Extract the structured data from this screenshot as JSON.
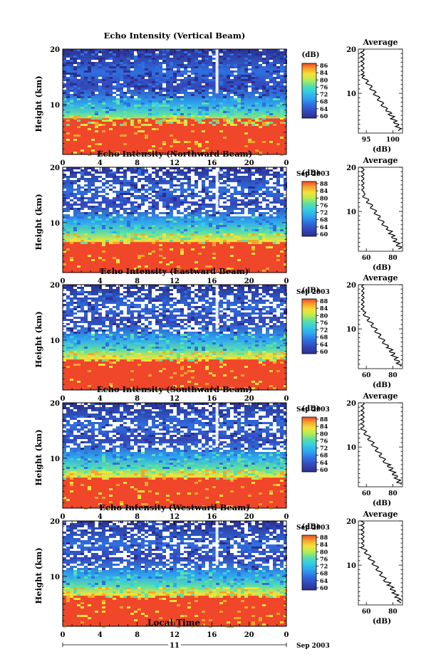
{
  "chart_data": [
    {
      "type": "heatmap",
      "title": "Echo Intensity (Vertical Beam)",
      "ylabel": "Height (km)",
      "xticks": [
        "0",
        "4",
        "8",
        "12",
        "16",
        "20",
        "0"
      ],
      "yticks": [
        "20",
        "10"
      ],
      "date_label": "11",
      "month_year": "Sep 2003",
      "colorbar": {
        "unit": "(dB)",
        "ticks": [
          "86",
          "84",
          "80",
          "76",
          "72",
          "68",
          "64",
          "60"
        ]
      },
      "profile": {
        "title": "Average",
        "xticks": [
          "95",
          "100"
        ],
        "xlabel": "(dB)",
        "yticks": [
          "20",
          "10"
        ]
      }
    },
    {
      "type": "heatmap",
      "title": "Echo Intensity (Northward Beam)",
      "ylabel": "Height (km)",
      "xticks": [
        "0",
        "4",
        "8",
        "12",
        "16",
        "20",
        "0"
      ],
      "yticks": [
        "20",
        "10"
      ],
      "date_label": "11",
      "month_year": "Sep 2003",
      "colorbar": {
        "unit": "(dB)",
        "ticks": [
          "88",
          "84",
          "80",
          "76",
          "72",
          "68",
          "64",
          "60"
        ]
      },
      "profile": {
        "title": "Average",
        "xticks": [
          "60",
          "80"
        ],
        "xlabel": "(dB)",
        "yticks": [
          "20",
          "10"
        ]
      }
    },
    {
      "type": "heatmap",
      "title": "Echo Intensity (Eastward Beam)",
      "ylabel": "Height (km)",
      "xticks": [
        "0",
        "4",
        "8",
        "12",
        "16",
        "20",
        "0"
      ],
      "yticks": [
        "20",
        "10"
      ],
      "date_label": "11",
      "month_year": "Sep 2003",
      "colorbar": {
        "unit": "(dB)",
        "ticks": [
          "88",
          "84",
          "80",
          "76",
          "72",
          "68",
          "64",
          "60"
        ]
      },
      "profile": {
        "title": "Average",
        "xticks": [
          "60",
          "80"
        ],
        "xlabel": "(dB)",
        "yticks": [
          "20",
          "10"
        ]
      }
    },
    {
      "type": "heatmap",
      "title": "Echo Intensity (Southward Beam)",
      "ylabel": "Height (km)",
      "xticks": [
        "0",
        "4",
        "8",
        "12",
        "16",
        "20",
        "0"
      ],
      "yticks": [
        "20",
        "10"
      ],
      "date_label": "11",
      "month_year": "Sep 2003",
      "colorbar": {
        "unit": "(dB)",
        "ticks": [
          "88",
          "84",
          "80",
          "76",
          "72",
          "68",
          "64",
          "60"
        ]
      },
      "profile": {
        "title": "Average",
        "xticks": [
          "60",
          "80"
        ],
        "xlabel": "(dB)",
        "yticks": [
          "20",
          "10"
        ]
      }
    },
    {
      "type": "heatmap",
      "title": "Echo Intensity (Westward Beam)",
      "ylabel": "Height (km)",
      "xticks": [
        "0",
        "4",
        "8",
        "12",
        "16",
        "20",
        "0"
      ],
      "yticks": [
        "20",
        "10"
      ],
      "date_label": "11",
      "month_year": "Sep 2003",
      "colorbar": {
        "unit": "(dB)",
        "ticks": [
          "88",
          "84",
          "80",
          "76",
          "72",
          "68",
          "64",
          "60"
        ]
      },
      "profile": {
        "title": "Average",
        "xticks": [
          "60",
          "80"
        ],
        "xlabel": "(dB)",
        "yticks": [
          "20",
          "10"
        ]
      }
    }
  ],
  "footer": {
    "xlabel": "Local Time"
  },
  "colors": {
    "palette": [
      "#2b2f8f",
      "#3346b8",
      "#2f6fe0",
      "#2ea6f0",
      "#35d0e0",
      "#5fe0a0",
      "#b8ec50",
      "#f4e23a",
      "#f7a52a",
      "#f0462a"
    ]
  }
}
